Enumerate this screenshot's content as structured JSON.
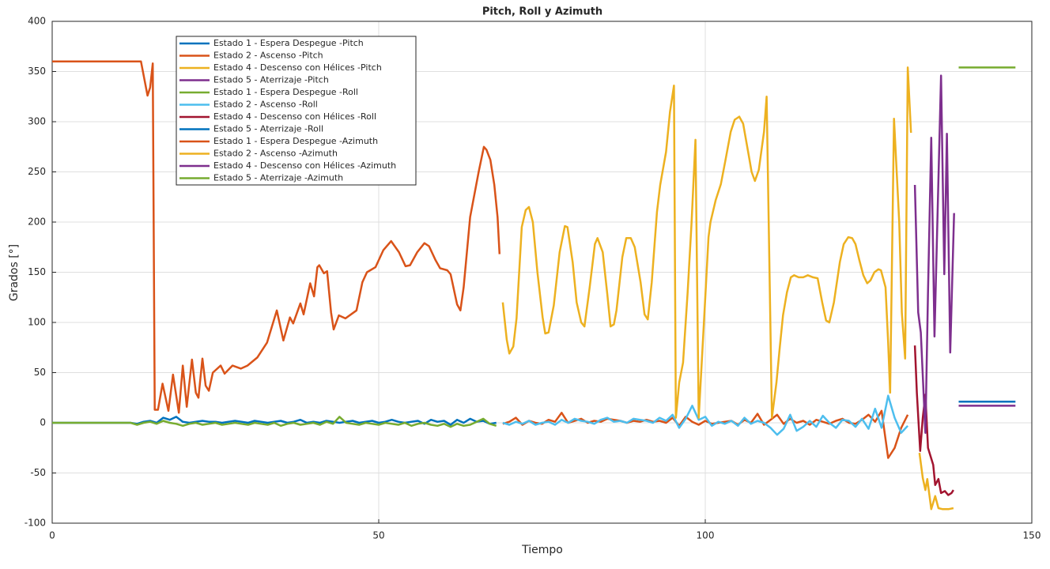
{
  "chart_data": {
    "type": "line",
    "title": "Pitch, Roll y Azimuth",
    "x_label": "Tiempo",
    "y_label": "Grados [°]",
    "xlim": [
      0,
      150
    ],
    "ylim": [
      -100,
      400
    ],
    "xticks": [
      0,
      50,
      100,
      150
    ],
    "yticks": [
      -100,
      -50,
      0,
      50,
      100,
      150,
      200,
      250,
      300,
      350,
      400
    ],
    "grid": true,
    "legend": "upper-left",
    "series": [
      {
        "name": "Estado 1 - Espera Despegue -Pitch",
        "color": "#0072bd",
        "x": [
          0,
          1,
          2,
          3,
          4,
          5,
          6,
          7,
          8,
          9,
          10,
          11,
          12,
          13,
          14,
          15,
          16,
          17,
          18,
          19,
          20,
          21,
          22,
          23,
          24,
          25,
          26,
          27,
          28,
          29,
          30,
          31,
          32,
          33,
          34,
          35,
          36,
          37,
          38,
          39,
          40,
          41,
          42,
          43,
          44,
          45,
          46,
          47,
          48,
          49,
          50,
          51,
          52,
          53,
          54,
          55,
          56,
          57,
          58,
          59,
          60,
          61,
          62,
          63,
          64,
          65,
          66,
          67,
          68
        ],
        "values": [
          0,
          0,
          0,
          0,
          0,
          0,
          0,
          0,
          0,
          0,
          0,
          0,
          0,
          -1,
          1,
          2,
          0,
          5,
          3,
          6,
          1,
          0,
          1,
          2,
          1,
          1,
          0,
          1,
          2,
          1,
          0,
          2,
          1,
          0,
          1,
          2,
          0,
          1,
          3,
          0,
          1,
          0,
          2,
          1,
          0,
          1,
          2,
          0,
          1,
          2,
          0,
          1,
          3,
          1,
          0,
          1,
          2,
          -1,
          3,
          1,
          2,
          -2,
          3,
          0,
          4,
          1,
          2,
          -1,
          0
        ]
      },
      {
        "name": "Estado 2 - Ascenso -Pitch",
        "color": "#d95319",
        "x": [
          69,
          70,
          71,
          72,
          73,
          74,
          75,
          76,
          77,
          78,
          79,
          80,
          81,
          82,
          83,
          84,
          85,
          86,
          87,
          88,
          89,
          90,
          91,
          92,
          93,
          94,
          95,
          96,
          97,
          98,
          99,
          100,
          101,
          102,
          103,
          104,
          105,
          106,
          107,
          108,
          109,
          110,
          111,
          112,
          113,
          114,
          115,
          116,
          117,
          118,
          119,
          120,
          121,
          122,
          123,
          124,
          125,
          126,
          127,
          128,
          129,
          130,
          131
        ],
        "values": [
          -1,
          1,
          5,
          -2,
          2,
          0,
          -1,
          3,
          1,
          10,
          0,
          2,
          4,
          0,
          2,
          1,
          4,
          3,
          2,
          0,
          2,
          1,
          3,
          1,
          2,
          0,
          5,
          -3,
          6,
          1,
          -2,
          2,
          -1,
          0,
          1,
          2,
          -2,
          3,
          0,
          9,
          -2,
          3,
          8,
          -1,
          4,
          0,
          2,
          -2,
          3,
          1,
          -1,
          2,
          4,
          0,
          -1,
          3,
          8,
          1,
          12,
          -35,
          -25,
          -5,
          8
        ]
      },
      {
        "name": "Estado 4 - Descenso con Hélices -Pitch",
        "color": "#edb120",
        "x": [
          132.8,
          133.3,
          133.7,
          134.0,
          134.6,
          135.2,
          135.7,
          136.3,
          137.3,
          138.0
        ],
        "values": [
          -30,
          -55,
          -67,
          -56,
          -86,
          -73,
          -85,
          -86,
          -86,
          -85
        ]
      },
      {
        "name": "Estado 5 - Aterrizaje -Pitch",
        "color": "#7e2f8e",
        "x": [
          138.8,
          143,
          147.5
        ],
        "values": [
          17,
          17,
          17
        ]
      },
      {
        "name": "Estado 1 - Espera Despegue -Roll",
        "color": "#77ac30",
        "x": [
          0,
          1,
          2,
          3,
          4,
          5,
          6,
          7,
          8,
          9,
          10,
          11,
          12,
          13,
          14,
          15,
          16,
          17,
          18,
          19,
          20,
          21,
          22,
          23,
          24,
          25,
          26,
          27,
          28,
          29,
          30,
          31,
          32,
          33,
          34,
          35,
          36,
          37,
          38,
          39,
          40,
          41,
          42,
          43,
          44,
          45,
          46,
          47,
          48,
          49,
          50,
          51,
          52,
          53,
          54,
          55,
          56,
          57,
          58,
          59,
          60,
          61,
          62,
          63,
          64,
          65,
          66,
          67,
          68
        ],
        "values": [
          0,
          0,
          0,
          0,
          0,
          0,
          0,
          0,
          0,
          0,
          0,
          0,
          0,
          -2,
          0,
          1,
          -1,
          2,
          0,
          -1,
          -3,
          -1,
          0,
          -2,
          -1,
          0,
          -2,
          -1,
          0,
          -1,
          -2,
          0,
          -1,
          -2,
          0,
          -3,
          -1,
          0,
          -2,
          -1,
          0,
          -2,
          1,
          -1,
          6,
          0,
          -1,
          -2,
          0,
          -1,
          -2,
          0,
          -1,
          -2,
          0,
          -3,
          -1,
          0,
          -2,
          -3,
          -1,
          -4,
          -1,
          -3,
          -2,
          1,
          4,
          -1,
          -3
        ]
      },
      {
        "name": "Estado 2 - Ascenso -Roll",
        "color": "#4dbeee",
        "x": [
          69,
          70,
          71,
          72,
          73,
          74,
          75,
          76,
          77,
          78,
          79,
          80,
          81,
          82,
          83,
          84,
          85,
          86,
          87,
          88,
          89,
          90,
          91,
          92,
          93,
          94,
          95,
          96,
          97,
          98,
          99,
          100,
          101,
          102,
          103,
          104,
          105,
          106,
          107,
          108,
          109,
          110,
          111,
          112,
          113,
          114,
          115,
          116,
          117,
          118,
          119,
          120,
          121,
          122,
          123,
          124,
          125,
          126,
          127,
          128,
          129,
          130,
          131
        ],
        "values": [
          0,
          -2,
          1,
          -1,
          2,
          -2,
          0,
          1,
          -2,
          3,
          0,
          4,
          2,
          1,
          -1,
          3,
          5,
          1,
          2,
          0,
          4,
          3,
          2,
          0,
          5,
          2,
          8,
          -5,
          4,
          17,
          3,
          6,
          -3,
          1,
          -1,
          2,
          -3,
          5,
          -1,
          2,
          0,
          -5,
          -12,
          -6,
          8,
          -8,
          -4,
          2,
          -4,
          7,
          0,
          -5,
          3,
          2,
          -4,
          4,
          -6,
          14,
          -5,
          27,
          5,
          -10,
          -3
        ]
      },
      {
        "name": "Estado 4 - Descenso con Hélices -Roll",
        "color": "#a2142f",
        "x": [
          132.1,
          132.4,
          132.9,
          133.3,
          133.7,
          134.1,
          134.9,
          135.2,
          135.7,
          136.1,
          136.7,
          137.2,
          137.7,
          138.0
        ],
        "values": [
          77,
          30,
          -28,
          5,
          28,
          -25,
          -42,
          -62,
          -56,
          -70,
          -68,
          -72,
          -70,
          -67
        ]
      },
      {
        "name": "Estado 5 - Aterrizaje -Roll",
        "color": "#0072bd",
        "x": [
          138.8,
          143,
          147.5
        ],
        "values": [
          21,
          21,
          21
        ]
      },
      {
        "name": "Estado 1 - Espera Despegue -Azimuth",
        "color": "#d95319",
        "x": [
          0,
          13.6,
          14.6,
          15.0,
          15.4,
          15.7,
          16.2,
          16.9,
          17.8,
          18.5,
          19.4,
          20.0,
          20.6,
          21.4,
          22.0,
          22.4,
          23.0,
          23.5,
          24.0,
          24.6,
          25.8,
          26.4,
          27.6,
          28.9,
          29.9,
          31.4,
          32.9,
          34.4,
          35.4,
          36.4,
          36.9,
          38.0,
          38.5,
          39.5,
          40.1,
          40.6,
          40.9,
          41.6,
          42.1,
          42.7,
          43.1,
          43.9,
          44.9,
          46.6,
          47.5,
          48.2,
          49.5,
          50.7,
          51.9,
          53.1,
          54.1,
          54.8,
          55.9,
          57.0,
          57.7,
          58.7,
          59.4,
          60.5,
          61.0,
          62.0,
          62.5,
          63.0,
          64.0,
          65.3,
          66.1,
          66.5,
          67.1,
          67.7,
          68.2,
          68.5
        ],
        "values": [
          360,
          360,
          326,
          334,
          358,
          13,
          13,
          39,
          12,
          48,
          10,
          57,
          16,
          63,
          30,
          25,
          64,
          37,
          32,
          50,
          57,
          49,
          57,
          54,
          57,
          65,
          80,
          112,
          82,
          105,
          99,
          119,
          108,
          139,
          126,
          155,
          157,
          149,
          151,
          110,
          93,
          107,
          104,
          112,
          140,
          150,
          155,
          172,
          181,
          170,
          156,
          157,
          170,
          179,
          176,
          162,
          154,
          152,
          148,
          118,
          112,
          135,
          205,
          250,
          275,
          272,
          262,
          237,
          205,
          168
        ]
      },
      {
        "name": "Estado 2 - Ascenso -Azimuth",
        "color": "#edb120",
        "x": [
          69.0,
          69.6,
          70.0,
          70.6,
          71.1,
          71.9,
          72.5,
          73.0,
          73.6,
          74.3,
          75.1,
          75.5,
          76.0,
          76.8,
          77.7,
          78.5,
          78.9,
          79.7,
          80.3,
          81.0,
          81.5,
          82.3,
          83.1,
          83.5,
          84.3,
          85.0,
          85.5,
          86.0,
          86.4,
          87.3,
          87.9,
          88.6,
          89.2,
          90.1,
          90.7,
          91.2,
          91.8,
          92.6,
          93.1,
          94.0,
          94.6,
          95.2,
          95.5,
          96.0,
          96.6,
          97.3,
          97.9,
          98.5,
          99.0,
          99.8,
          100.5,
          100.8,
          101.6,
          102.4,
          103.1,
          103.9,
          104.5,
          105.2,
          105.8,
          106.7,
          107.1,
          107.6,
          108.2,
          109.0,
          109.4,
          110.2,
          110.9,
          111.4,
          111.9,
          112.5,
          113.1,
          113.6,
          114.3,
          115.0,
          115.7,
          116.5,
          117.2,
          117.9,
          118.5,
          119.0,
          119.7,
          120.6,
          121.2,
          121.9,
          122.5,
          123.0,
          123.6,
          124.2,
          124.8,
          125.3,
          125.9,
          126.5,
          126.9,
          127.6,
          128.0,
          128.3,
          128.9,
          129.7,
          130.1,
          130.6,
          131.0,
          131.5
        ],
        "values": [
          120,
          83,
          69,
          76,
          104,
          195,
          212,
          215,
          200,
          150,
          105,
          89,
          90,
          117,
          170,
          196,
          195,
          160,
          120,
          100,
          96,
          135,
          178,
          184,
          170,
          128,
          96,
          98,
          112,
          165,
          184,
          184,
          175,
          140,
          108,
          103,
          140,
          210,
          237,
          270,
          310,
          336,
          5,
          40,
          60,
          130,
          200,
          282,
          5,
          100,
          185,
          200,
          222,
          238,
          262,
          290,
          302,
          305,
          298,
          265,
          250,
          241,
          252,
          290,
          325,
          5,
          40,
          75,
          107,
          130,
          145,
          147,
          145,
          145,
          147,
          145,
          144,
          120,
          102,
          100,
          120,
          160,
          178,
          185,
          184,
          178,
          162,
          147,
          139,
          142,
          150,
          153,
          152,
          135,
          80,
          30,
          303,
          200,
          110,
          64,
          354,
          289
        ]
      },
      {
        "name": "Estado 4 - Descenso con Hélices -Azimuth",
        "color": "#7e2f8e",
        "x": [
          132.1,
          132.6,
          133.0,
          133.7,
          134.1,
          134.6,
          135.1,
          136.1,
          136.6,
          137.0,
          137.5,
          138.1
        ],
        "values": [
          237,
          110,
          90,
          -10,
          130,
          284,
          86,
          346,
          148,
          288,
          70,
          209
        ]
      },
      {
        "name": "Estado 5 - Aterrizaje -Azimuth",
        "color": "#77ac30",
        "x": [
          138.8,
          143,
          147.5
        ],
        "values": [
          354,
          354,
          354
        ]
      }
    ]
  }
}
